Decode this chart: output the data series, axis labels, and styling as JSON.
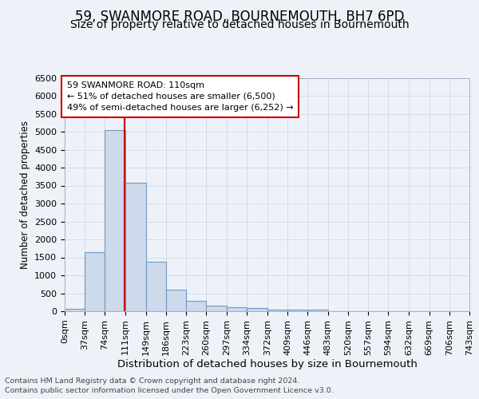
{
  "title": "59, SWANMORE ROAD, BOURNEMOUTH, BH7 6PD",
  "subtitle": "Size of property relative to detached houses in Bournemouth",
  "xlabel": "Distribution of detached houses by size in Bournemouth",
  "ylabel": "Number of detached properties",
  "bar_edges": [
    0,
    37,
    74,
    111,
    149,
    186,
    223,
    260,
    297,
    334,
    372,
    409,
    446,
    483,
    520,
    557,
    594,
    632,
    669,
    706,
    743
  ],
  "bar_heights": [
    75,
    1650,
    5050,
    3580,
    1380,
    610,
    290,
    155,
    120,
    80,
    55,
    45,
    45,
    0,
    0,
    0,
    0,
    0,
    0,
    0
  ],
  "bar_color": "#cddaeb",
  "bar_edge_color": "#7098c0",
  "bar_linewidth": 0.8,
  "vline_x": 110,
  "vline_color": "#cc0000",
  "vline_linewidth": 1.5,
  "annotation_text": "59 SWANMORE ROAD: 110sqm\n← 51% of detached houses are smaller (6,500)\n49% of semi-detached houses are larger (6,252) →",
  "annotation_box_color": "white",
  "annotation_box_edgecolor": "#cc0000",
  "annotation_fontsize": 8,
  "ylim": [
    0,
    6500
  ],
  "yticks": [
    0,
    500,
    1000,
    1500,
    2000,
    2500,
    3000,
    3500,
    4000,
    4500,
    5000,
    5500,
    6000,
    6500
  ],
  "xtick_labels": [
    "0sqm",
    "37sqm",
    "74sqm",
    "111sqm",
    "149sqm",
    "186sqm",
    "223sqm",
    "260sqm",
    "297sqm",
    "334sqm",
    "372sqm",
    "409sqm",
    "446sqm",
    "483sqm",
    "520sqm",
    "557sqm",
    "594sqm",
    "632sqm",
    "669sqm",
    "706sqm",
    "743sqm"
  ],
  "grid_color": "#ccd8ee",
  "background_color": "#eef2f8",
  "footer_line1": "Contains HM Land Registry data © Crown copyright and database right 2024.",
  "footer_line2": "Contains public sector information licensed under the Open Government Licence v3.0.",
  "title_fontsize": 12,
  "subtitle_fontsize": 10,
  "xlabel_fontsize": 9.5,
  "ylabel_fontsize": 8.5,
  "tick_fontsize": 8,
  "footer_fontsize": 6.8
}
